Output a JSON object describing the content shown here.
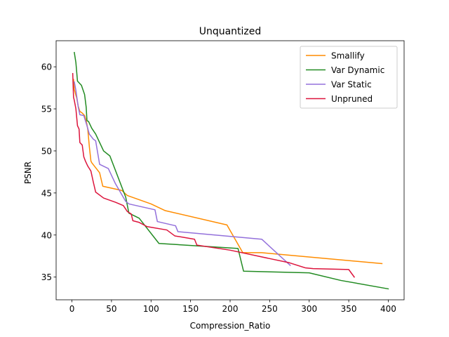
{
  "chart_data": {
    "type": "line",
    "title": "Unquantized",
    "xlabel": "Compression_Ratio",
    "ylabel": "PSNR",
    "xlim": [
      -20,
      420
    ],
    "ylim": [
      32.3,
      63.1
    ],
    "xticks": [
      0,
      50,
      100,
      150,
      200,
      250,
      300,
      350,
      400
    ],
    "yticks": [
      35,
      40,
      45,
      50,
      55,
      60
    ],
    "grid": false,
    "legend_position": "top-right",
    "series": [
      {
        "name": "Smallify",
        "color": "#ff8c00",
        "x": [
          2,
          3,
          5,
          6,
          8,
          10,
          13,
          16,
          18,
          20,
          22,
          24,
          25,
          35,
          39,
          63,
          70,
          100,
          118,
          196,
          216,
          240,
          392
        ],
        "y": [
          58.5,
          57.3,
          56.6,
          56.3,
          55.3,
          54.7,
          54.5,
          54.2,
          53.6,
          52.6,
          50.5,
          48.8,
          48.6,
          47.4,
          45.8,
          45.3,
          44.7,
          43.7,
          42.9,
          41.2,
          37.9,
          37.9,
          36.6
        ]
      },
      {
        "name": "Var Dynamic",
        "color": "#228b22",
        "x": [
          3,
          5,
          7,
          12,
          16,
          18,
          19,
          21,
          25,
          30,
          40,
          48,
          68,
          72,
          85,
          110,
          210,
          217,
          300,
          340,
          400
        ],
        "y": [
          61.7,
          60.5,
          58.3,
          57.8,
          56.7,
          55.2,
          53.6,
          53.5,
          52.7,
          52.0,
          50.0,
          49.4,
          44.5,
          42.6,
          42.0,
          39.0,
          38.4,
          35.7,
          35.5,
          34.6,
          33.6
        ]
      },
      {
        "name": "Var Static",
        "color": "#9370db",
        "x": [
          3,
          5,
          8,
          10,
          15,
          19,
          22,
          27,
          30,
          35,
          46,
          55,
          68,
          72,
          105,
          108,
          131,
          134,
          240,
          276
        ],
        "y": [
          58.2,
          57.2,
          55.2,
          54.3,
          54.2,
          53.0,
          52.0,
          51.4,
          51.2,
          48.4,
          47.9,
          46.1,
          44.0,
          43.7,
          43.0,
          41.6,
          41.1,
          40.4,
          39.5,
          36.4
        ]
      },
      {
        "name": "Unpruned",
        "color": "#dc143c",
        "x": [
          1,
          2,
          3,
          5,
          7,
          9,
          10,
          13,
          15,
          17,
          20,
          24,
          27,
          30,
          40,
          55,
          65,
          70,
          75,
          77,
          85,
          95,
          120,
          130,
          155,
          158,
          200,
          250,
          275,
          295,
          305,
          350,
          357
        ],
        "y": [
          59.2,
          56.4,
          56.0,
          55.0,
          53.0,
          52.6,
          51.0,
          50.7,
          49.3,
          48.8,
          48.2,
          47.6,
          46.3,
          45.1,
          44.4,
          43.9,
          43.5,
          42.8,
          42.5,
          41.7,
          41.5,
          41.0,
          40.6,
          39.9,
          39.5,
          38.8,
          38.2,
          37.2,
          36.7,
          36.1,
          36.0,
          35.9,
          35.0
        ]
      }
    ]
  }
}
